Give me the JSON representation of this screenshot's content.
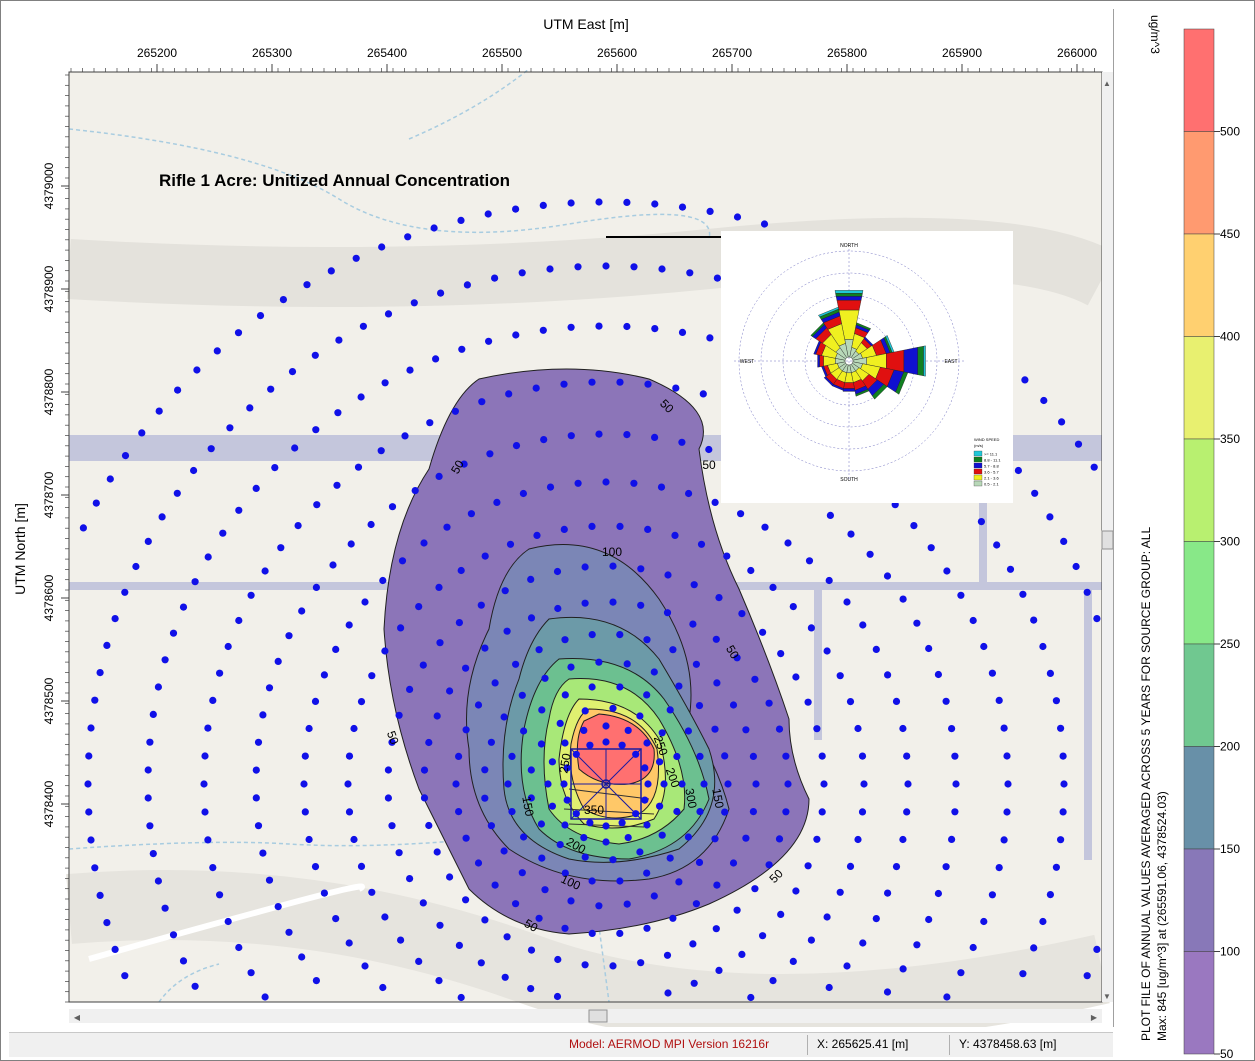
{
  "plot": {
    "title": "Rifle 1 Acre: Unitized Annual Concentration",
    "x_axis_label": "UTM East [m]",
    "y_axis_label": "UTM North [m]",
    "x_ticks": [
      "265200",
      "265300",
      "265400",
      "265500",
      "265600",
      "265700",
      "265800",
      "265900",
      "266000"
    ],
    "y_ticks": [
      "4379000",
      "4378900",
      "4378800",
      "4378700",
      "4378600",
      "4378500",
      "4378400"
    ],
    "contour_labels": [
      "50",
      "50",
      "50",
      "50",
      "50",
      "50",
      "50",
      "100",
      "100",
      "150",
      "150",
      "200",
      "200",
      "250",
      "250",
      "300",
      "350"
    ],
    "source_center_utm": "265591.06, 4378524.03"
  },
  "windrose": {
    "north": "NORTH",
    "south": "SOUTH",
    "east": "EAST",
    "west": "WEST",
    "legend_title": "WIND SPEED",
    "legend_unit": "(m/s)",
    "legend_items": [
      {
        "label": ">= 11.1",
        "color": "#20c8d8"
      },
      {
        "label": "8.8 - 11.1",
        "color": "#108020"
      },
      {
        "label": "5.7 - 8.8",
        "color": "#1010d0"
      },
      {
        "label": "3.6 - 5.7",
        "color": "#e01010"
      },
      {
        "label": "2.1 - 3.6",
        "color": "#f0f020"
      },
      {
        "label": "0.5 - 2.1",
        "color": "#b8d8b8"
      }
    ]
  },
  "legend": {
    "unit": "ug/m^3",
    "caption": "PLOT FILE OF ANNUAL VALUES AVERAGED ACROSS 5 YEARS FOR SOURCE GROUP: ALL",
    "max_line": "Max:  845  [ug/m^3]  at  (265591.06, 4378524.03)",
    "ticks": [
      "500",
      "450",
      "400",
      "350",
      "300",
      "250",
      "200",
      "150",
      "100",
      "50"
    ],
    "colors": [
      "#ff7070",
      "#ff9a70",
      "#ffd070",
      "#e8f070",
      "#b8f070",
      "#88e888",
      "#70c890",
      "#6890a8",
      "#8878b8",
      "#9a78c0"
    ]
  },
  "status": {
    "model": "Model: AERMOD MPI Version 16216r",
    "x_coord": "X: 265625.41 [m]",
    "y_coord": "Y: 4378458.63 [m]"
  }
}
